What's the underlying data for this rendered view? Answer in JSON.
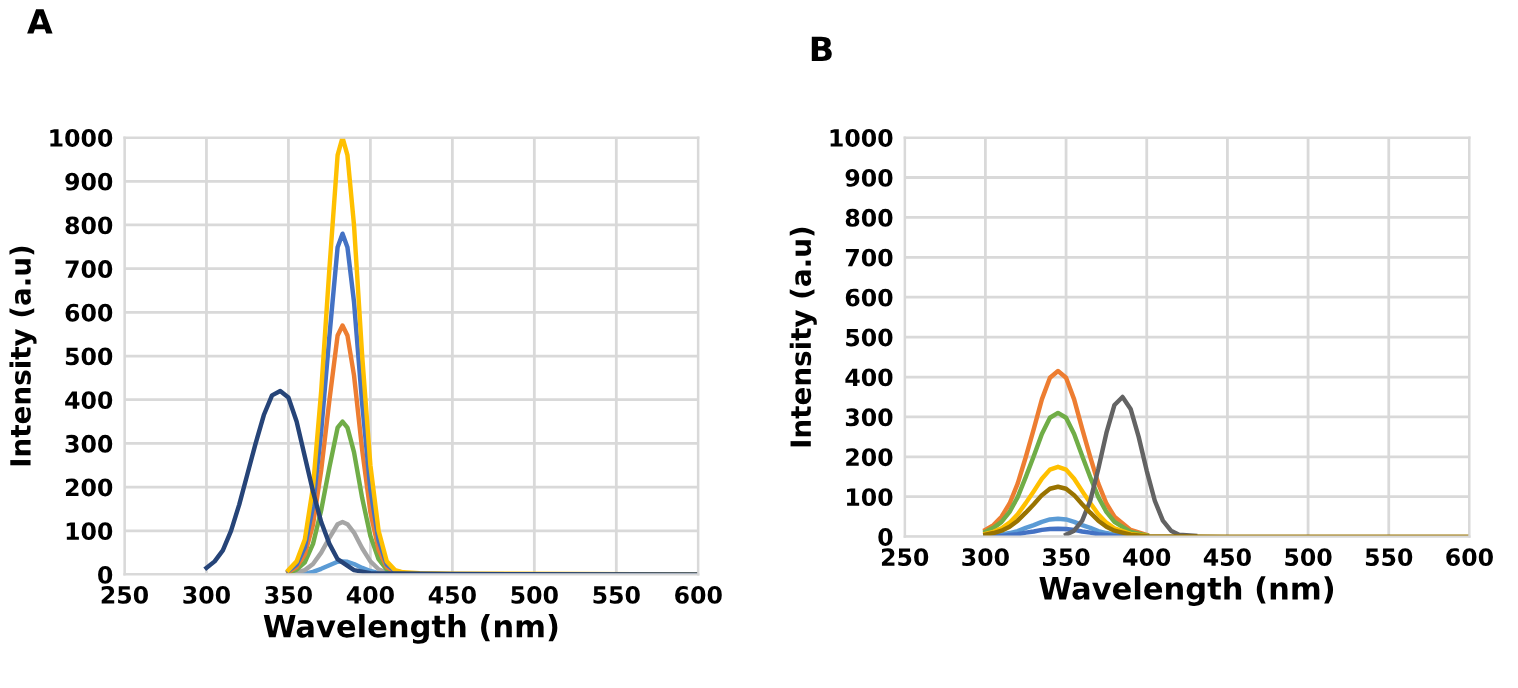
{
  "chart_data": [
    {
      "type": "line",
      "title": "A",
      "xlabel": "Wavelength (nm)",
      "ylabel": "Intensity (a.u)",
      "xlim": [
        250,
        600
      ],
      "xticks": [
        250,
        300,
        350,
        400,
        450,
        500,
        550,
        600
      ],
      "ylim": [
        0,
        1000
      ],
      "yticks": [
        0,
        100,
        200,
        300,
        400,
        500,
        600,
        700,
        800,
        900,
        1000
      ],
      "grid": true,
      "marker": "none",
      "line_style": "solid",
      "x": [
        350,
        355,
        360,
        365,
        370,
        375,
        380,
        383,
        386,
        390,
        395,
        400,
        405,
        410,
        415,
        420,
        430,
        450,
        600
      ],
      "series": [
        {
          "color": "#5b9bd5",
          "values": [
            0,
            1,
            2,
            6,
            13,
            21,
            29,
            30,
            29,
            24,
            15,
            8,
            3,
            1,
            0,
            0,
            null,
            null,
            null
          ]
        },
        {
          "color": "#a5a5a5",
          "values": [
            1,
            4,
            10,
            24,
            50,
            84,
            115,
            120,
            115,
            96,
            60,
            30,
            12,
            4,
            1,
            1,
            null,
            null,
            null
          ]
        },
        {
          "color": "#70ad47",
          "values": [
            4,
            11,
            28,
            70,
            147,
            245,
            336,
            350,
            336,
            280,
            175,
            88,
            35,
            11,
            4,
            2,
            null,
            null,
            null
          ]
        },
        {
          "color": "#ed7d31",
          "values": [
            6,
            17,
            46,
            114,
            239,
            399,
            547,
            570,
            547,
            456,
            285,
            143,
            57,
            17,
            6,
            3,
            null,
            null,
            null
          ]
        },
        {
          "color": "#4472c4",
          "values": [
            8,
            23,
            62,
            156,
            328,
            546,
            749,
            780,
            749,
            624,
            390,
            195,
            78,
            23,
            8,
            4,
            null,
            null,
            null
          ]
        },
        {
          "color": "#ffc000",
          "values": [
            10,
            30,
            80,
            200,
            420,
            700,
            960,
            1000,
            960,
            800,
            500,
            250,
            100,
            30,
            10,
            5,
            3,
            2,
            0
          ]
        },
        {
          "color": "#264478",
          "x": [
            300,
            305,
            310,
            315,
            320,
            325,
            330,
            335,
            340,
            345,
            350,
            355,
            360,
            365,
            370,
            375,
            380,
            390,
            400,
            450,
            600
          ],
          "values": [
            15,
            30,
            55,
            100,
            160,
            230,
            300,
            365,
            410,
            420,
            405,
            350,
            270,
            190,
            120,
            70,
            35,
            10,
            3,
            1,
            0
          ]
        }
      ]
    },
    {
      "type": "line",
      "title": "B",
      "xlabel": "Wavelength (nm)",
      "ylabel": "Intensity (a.u)",
      "xlim": [
        250,
        600
      ],
      "xticks": [
        250,
        300,
        350,
        400,
        450,
        500,
        550,
        600
      ],
      "ylim": [
        0,
        1000
      ],
      "yticks": [
        0,
        100,
        200,
        300,
        400,
        500,
        600,
        700,
        800,
        900,
        1000
      ],
      "grid": true,
      "marker": "none",
      "line_style": "solid",
      "x": [
        300,
        305,
        310,
        315,
        320,
        325,
        330,
        335,
        340,
        345,
        350,
        355,
        360,
        365,
        370,
        375,
        380,
        390,
        400,
        450,
        600
      ],
      "series": [
        {
          "color": "#ed7d31",
          "values": [
            17,
            29,
            50,
            83,
            133,
            199,
            270,
            344,
            398,
            415,
            398,
            344,
            270,
            199,
            133,
            83,
            50,
            17,
            4,
            null,
            null
          ]
        },
        {
          "color": "#70ad47",
          "values": [
            12,
            22,
            37,
            62,
            99,
            149,
            202,
            257,
            298,
            310,
            298,
            257,
            202,
            149,
            99,
            62,
            37,
            12,
            3,
            null,
            null
          ]
        },
        {
          "color": "#ffc000",
          "values": [
            7,
            12,
            21,
            35,
            56,
            84,
            114,
            145,
            168,
            175,
            168,
            145,
            114,
            84,
            56,
            35,
            21,
            7,
            2,
            null,
            null
          ]
        },
        {
          "color": "#5b9bd5",
          "values": [
            2,
            3,
            5,
            9,
            14,
            22,
            29,
            37,
            43,
            45,
            43,
            37,
            29,
            22,
            14,
            9,
            5,
            2,
            0,
            null,
            null
          ]
        },
        {
          "color": "#4472c4",
          "values": [
            1,
            1,
            2,
            4,
            6,
            10,
            13,
            17,
            19,
            20,
            19,
            17,
            13,
            10,
            6,
            4,
            2,
            1,
            0,
            null,
            null
          ]
        },
        {
          "color": "#636363",
          "x": [
            350,
            355,
            360,
            365,
            370,
            375,
            380,
            385,
            390,
            395,
            400,
            405,
            410,
            415,
            420,
            430
          ],
          "values": [
            5,
            15,
            40,
            90,
            170,
            260,
            330,
            350,
            320,
            250,
            165,
            90,
            40,
            15,
            5,
            2
          ]
        },
        {
          "color": "#997300",
          "values": [
            5,
            9,
            15,
            25,
            40,
            60,
            81,
            104,
            120,
            125,
            120,
            104,
            81,
            60,
            40,
            25,
            15,
            5,
            1,
            0,
            0
          ]
        }
      ]
    }
  ]
}
